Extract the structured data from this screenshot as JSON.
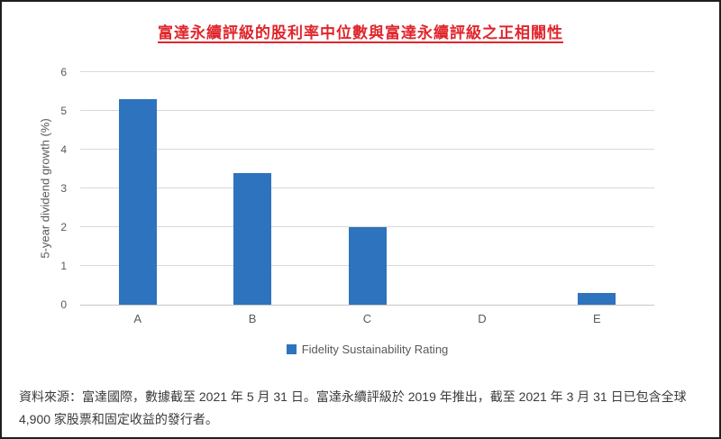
{
  "title": "富達永續評級的股利率中位數與富達永續評級之正相關性",
  "colors": {
    "bar": "#2e73be",
    "title_red": "#e0262c",
    "gridline": "#d9d9d9",
    "axis_text": "#595959",
    "footer_text": "#3b3b3b"
  },
  "chart_data": {
    "type": "bar",
    "categories": [
      "A",
      "B",
      "C",
      "D",
      "E"
    ],
    "values": [
      5.3,
      3.4,
      2.0,
      0,
      0.3
    ],
    "series_name": "Fidelity Sustainability Rating",
    "title": "富達永續評級的股利率中位數與富達永續評級之正相關性",
    "xlabel": "",
    "ylabel": "5-year dividend growth (%)",
    "ylim": [
      0,
      6
    ],
    "yticks": [
      0,
      1,
      2,
      3,
      4,
      5,
      6
    ],
    "grid": true,
    "legend_position": "bottom",
    "bar_color": "#2e73be"
  },
  "legend": {
    "label": "Fidelity Sustainability Rating"
  },
  "footer": {
    "text": "資料來源：富達國際，數據截至 2021 年 5 月 31 日。富達永續評級於 2019 年推出，截至 2021 年 3 月 31 日已包含全球 4,900 家股票和固定收益的發行者。"
  }
}
